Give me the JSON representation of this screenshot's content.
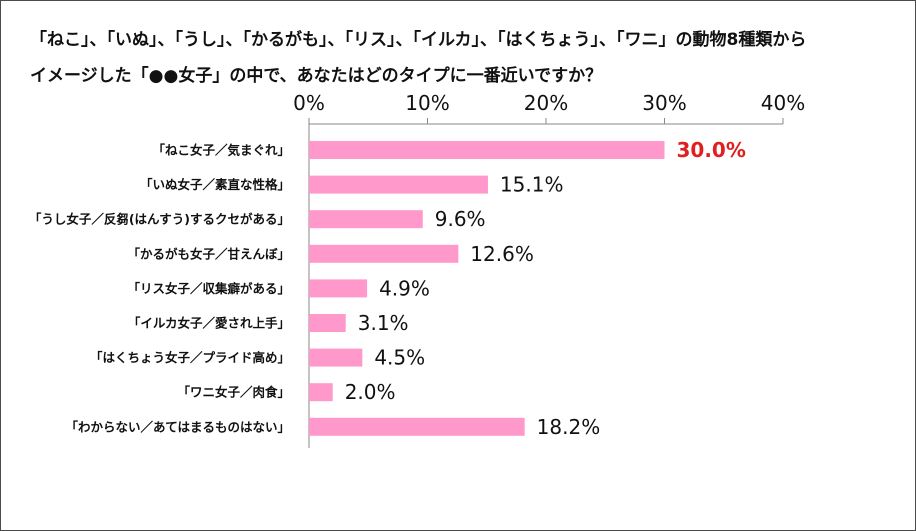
{
  "title_lines": [
    "「ねこ」、「いぬ」、「うし」、「かるがも」、「リス」、「イルカ」、「はくちょう」、「ワニ」の動物8種類から",
    "イメージした「●●女子」の中で、あなたはどのタイプに一番近いですか？"
  ],
  "chart_data": {
    "type": "bar",
    "orientation": "horizontal",
    "title": "「ねこ」、「いぬ」、「うし」、「かるがも」、「リス」、「イルカ」、「はくちょう」、「ワニ」の動物8種類から イメージした「●●女子」の中で、あなたはどのタイプに一番近いですか？",
    "categories": [
      "「ねこ女子／気まぐれ」",
      "「いぬ女子／素直な性格」",
      "「うし女子／反芻(はんすう)するクセがある」",
      "「かるがも女子／甘えんぼ」",
      "「リス女子／収集癖がある」",
      "「イルカ女子／愛され上手」",
      "「はくちょう女子／プライド高め」",
      "「ワニ女子／肉食」",
      "「わからない／あてはまるものはない」"
    ],
    "values": [
      30.0,
      15.1,
      9.6,
      12.6,
      4.9,
      3.1,
      4.5,
      2.0,
      18.2
    ],
    "value_labels": [
      "30.0%",
      "15.1%",
      "9.6%",
      "12.6%",
      "4.9%",
      "3.1%",
      "4.5%",
      "2.0%",
      "18.2%"
    ],
    "xlim": [
      0,
      40
    ],
    "xticks": [
      0,
      10,
      20,
      30,
      40
    ],
    "xtick_labels": [
      "0%",
      "10%",
      "20%",
      "30%",
      "40%"
    ],
    "axis_position": "top",
    "grid": false,
    "bar_color": "#ff99cc",
    "highlight_index": 0,
    "highlight_color": "#e02020"
  }
}
